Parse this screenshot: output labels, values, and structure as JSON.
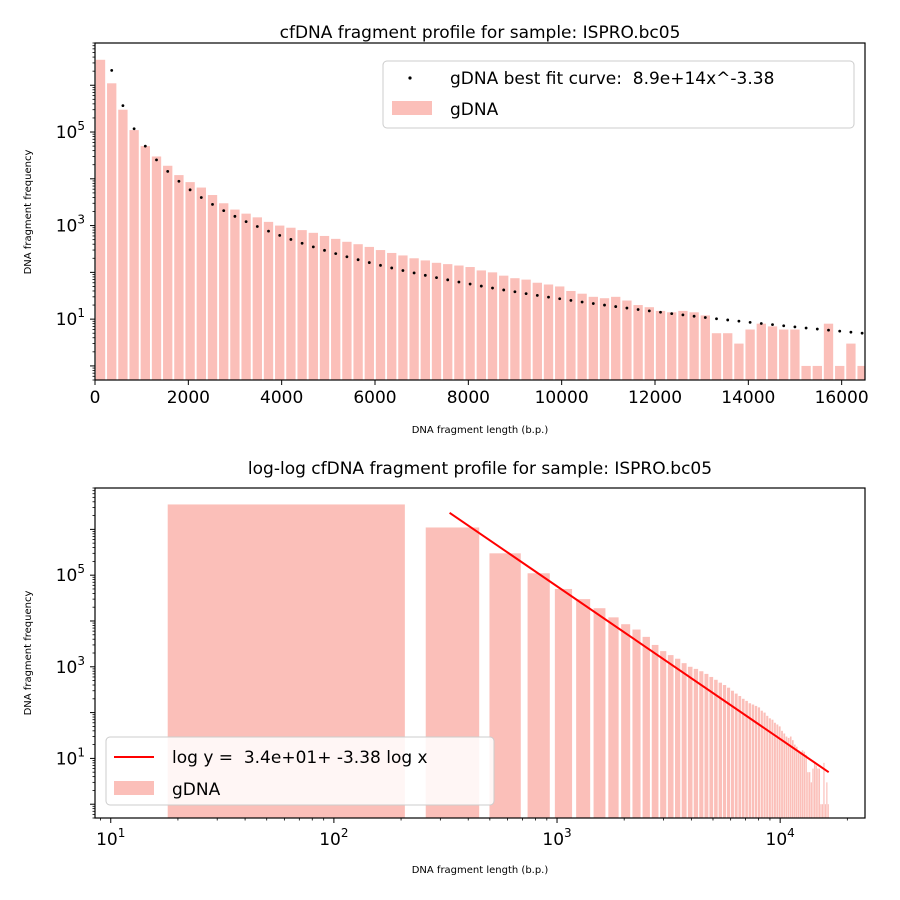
{
  "colors": {
    "bar": "#fbbfb9",
    "scatter": "#000000",
    "fit_line": "#ff0000",
    "axis": "#000000"
  },
  "chart_data": [
    {
      "type": "bar",
      "title": "cfDNA fragment profile for sample: ISPRO.bc05",
      "xlabel": "DNA fragment length (b.p.)",
      "ylabel": "DNA fragment frequency",
      "xscale": "linear",
      "yscale": "log",
      "xlim": [
        0,
        16500
      ],
      "ylim": [
        0.5,
        8000000
      ],
      "xticks": [
        0,
        2000,
        4000,
        6000,
        8000,
        10000,
        12000,
        14000,
        16000
      ],
      "xtick_labels": [
        "0",
        "2000",
        "4000",
        "6000",
        "8000",
        "10000",
        "12000",
        "14000",
        "16000"
      ],
      "yticks": [
        10,
        1000,
        100000
      ],
      "ytick_bases": [
        "10",
        "10",
        "10"
      ],
      "ytick_exps": [
        "1",
        "3",
        "5"
      ],
      "legend_position": "top-right",
      "bar_width": 200,
      "series": [
        {
          "name": "gDNA",
          "kind": "bar",
          "x": [
            118,
            358,
            598,
            838,
            1078,
            1318,
            1558,
            1798,
            2038,
            2278,
            2518,
            2758,
            2998,
            3238,
            3478,
            3718,
            3958,
            4198,
            4438,
            4678,
            4918,
            5158,
            5398,
            5638,
            5878,
            6118,
            6358,
            6598,
            6838,
            7078,
            7318,
            7558,
            7798,
            8038,
            8278,
            8518,
            8758,
            8998,
            9238,
            9478,
            9718,
            9958,
            10198,
            10438,
            10678,
            10918,
            11158,
            11398,
            11638,
            11878,
            12118,
            12358,
            12598,
            12838,
            13078,
            13318,
            13558,
            13798,
            14038,
            14278,
            14518,
            14758,
            14998,
            15238,
            15478,
            15718,
            15958,
            16198,
            16438
          ],
          "values": [
            3500000,
            1100000,
            300000,
            110000,
            50000,
            30000,
            19000,
            12000,
            8500,
            6500,
            4500,
            3000,
            2200,
            1800,
            1500,
            1200,
            1000,
            900,
            800,
            700,
            600,
            520,
            450,
            400,
            350,
            300,
            260,
            230,
            200,
            180,
            160,
            150,
            140,
            130,
            110,
            100,
            85,
            75,
            70,
            60,
            55,
            50,
            40,
            35,
            30,
            28,
            30,
            25,
            20,
            18,
            15,
            14,
            15,
            14,
            12,
            5,
            5,
            3,
            6,
            8,
            7,
            6,
            6,
            1,
            1,
            8,
            1,
            3,
            1
          ]
        },
        {
          "name": "gDNA best fit curve:  8.9e+14x^-3.38",
          "kind": "scatter",
          "coef": 890000000000000,
          "exponent": -3.38,
          "x_start": 358,
          "x_step": 240,
          "x_end": 16500
        }
      ]
    },
    {
      "type": "bar",
      "title": "log-log cfDNA fragment profile for sample: ISPRO.bc05",
      "xlabel": "DNA fragment length (b.p.)",
      "ylabel": "DNA fragment frequency",
      "xscale": "log",
      "yscale": "log",
      "xlim": [
        8.5,
        24000
      ],
      "ylim": [
        0.5,
        8000000
      ],
      "xticks": [
        10,
        100,
        1000,
        10000
      ],
      "xtick_bases": [
        "10",
        "10",
        "10",
        "10"
      ],
      "xtick_exps": [
        "1",
        "2",
        "3",
        "4"
      ],
      "yticks": [
        10,
        1000,
        100000
      ],
      "ytick_bases": [
        "10",
        "10",
        "10"
      ],
      "ytick_exps": [
        "1",
        "3",
        "5"
      ],
      "legend_position": "bottom-left",
      "series": [
        {
          "name": "gDNA",
          "kind": "bar",
          "note_values_same_as_top_chart": true
        },
        {
          "name": "log y =  3.4e+01+ -3.38 log x",
          "kind": "line",
          "x": [
            330,
            16500
          ],
          "y": [
            2300000,
            5
          ]
        }
      ]
    }
  ]
}
